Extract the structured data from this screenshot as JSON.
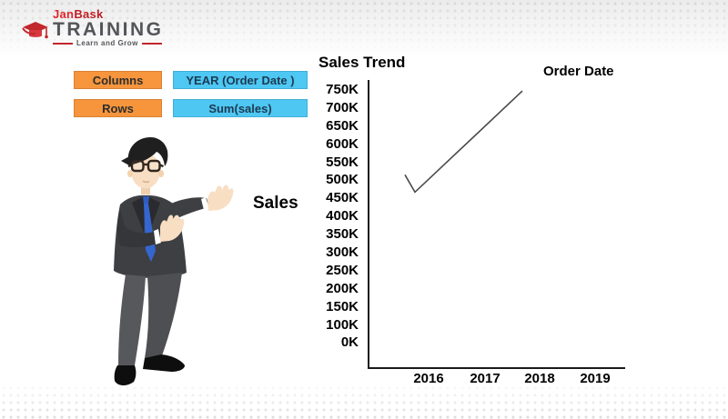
{
  "brand": {
    "name_part1": "Jan",
    "name_part2": "Bask",
    "title": "TRAINING",
    "tagline": "Learn and Grow",
    "colors": {
      "red": "#c2272d",
      "dark_gray": "#54565a"
    }
  },
  "shelf": {
    "label_bg": "#f6953c",
    "value_bg": "#4ec7f3",
    "rows": [
      {
        "label": "Columns",
        "value": "YEAR (Order Date )"
      },
      {
        "label": "Rows",
        "value": "Sum(sales)"
      }
    ]
  },
  "chart_data": {
    "type": "line",
    "title": "Sales Trend",
    "xlabel": "Order Date",
    "ylabel": "Sales",
    "x_ticks": [
      "2016",
      "2017",
      "2018",
      "2019"
    ],
    "y_ticks": [
      "750K",
      "700K",
      "650K",
      "600K",
      "550K",
      "500K",
      "450K",
      "400K",
      "350K",
      "300K",
      "250K",
      "200K",
      "150K",
      "100K",
      "0K"
    ],
    "ylim": [
      0,
      750000
    ],
    "grid": false,
    "legend_position": "none",
    "series": [
      {
        "name": "Sum(sales)",
        "shape_note": "stylized checkmark-shaped trend line",
        "points_est": [
          {
            "x": 2015.85,
            "y": 520000
          },
          {
            "x": 2016.0,
            "y": 475000
          },
          {
            "x": 2017.7,
            "y": 745000
          }
        ],
        "line_frac": [
          {
            "fx": 0.146,
            "fy": 0.328
          },
          {
            "fx": 0.185,
            "fy": 0.388
          },
          {
            "fx": 0.605,
            "fy": 0.038
          }
        ],
        "color": "#4a4a4a"
      }
    ]
  },
  "illustration": {
    "alt": "Businessman in dark suit with glasses and blue tie presenting the chart"
  }
}
